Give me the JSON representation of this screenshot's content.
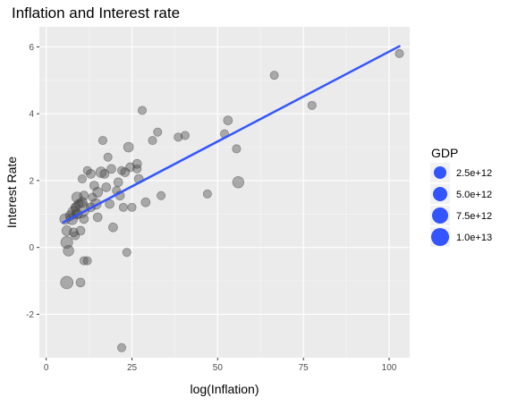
{
  "chart_data": {
    "type": "scatter",
    "title": "Inflation and Interest rate",
    "xlabel": "log(Inflation)",
    "ylabel": "Interest Rate",
    "xlim": [
      -2,
      106
    ],
    "ylim": [
      -3.3,
      6.6
    ],
    "xticks": [
      0,
      25,
      50,
      75,
      100
    ],
    "yticks": [
      -2,
      0,
      2,
      4,
      6
    ],
    "grid": true,
    "legend": {
      "title": "GDP",
      "position": "right",
      "entries": [
        "2.5e+12",
        "5.0e+12",
        "7.5e+12",
        "1.0e+13"
      ]
    },
    "point_color": "#444444",
    "point_alpha": 0.4,
    "trend_line": {
      "color": "#3355ff",
      "x": [
        5,
        103
      ],
      "y": [
        0.75,
        6.02
      ]
    },
    "points": [
      {
        "x": 5.5,
        "y": 0.85,
        "gdp": 2500000000000.0
      },
      {
        "x": 6.0,
        "y": 0.5,
        "gdp": 2000000000000.0
      },
      {
        "x": 6.0,
        "y": 0.15,
        "gdp": 3500000000000.0
      },
      {
        "x": 6.0,
        "y": -1.05,
        "gdp": 4000000000000.0
      },
      {
        "x": 6.5,
        "y": -0.1,
        "gdp": 2500000000000.0
      },
      {
        "x": 7.0,
        "y": 0.95,
        "gdp": 2000000000000.0
      },
      {
        "x": 7.5,
        "y": 0.85,
        "gdp": 3000000000000.0
      },
      {
        "x": 8.0,
        "y": 1.05,
        "gdp": 3500000000000.0
      },
      {
        "x": 8.0,
        "y": 0.45,
        "gdp": 1500000000000.0
      },
      {
        "x": 8.5,
        "y": 1.2,
        "gdp": 1500000000000.0
      },
      {
        "x": 8.5,
        "y": 0.35,
        "gdp": 1200000000000.0
      },
      {
        "x": 9.0,
        "y": 1.5,
        "gdp": 2500000000000.0
      },
      {
        "x": 9.0,
        "y": 1.0,
        "gdp": 2000000000000.0
      },
      {
        "x": 9.5,
        "y": 1.3,
        "gdp": 1500000000000.0
      },
      {
        "x": 10.0,
        "y": 1.15,
        "gdp": 10000000000000.0
      },
      {
        "x": 10.0,
        "y": 0.5,
        "gdp": 1500000000000.0
      },
      {
        "x": 10.5,
        "y": 1.35,
        "gdp": 2000000000000.0
      },
      {
        "x": 10.5,
        "y": 2.05,
        "gdp": 1200000000000.0
      },
      {
        "x": 11.0,
        "y": 1.55,
        "gdp": 1500000000000.0
      },
      {
        "x": 11.0,
        "y": 0.85,
        "gdp": 1500000000000.0
      },
      {
        "x": 10.0,
        "y": -1.05,
        "gdp": 1500000000000.0
      },
      {
        "x": 11.0,
        "y": -0.4,
        "gdp": 1200000000000.0
      },
      {
        "x": 12.0,
        "y": -0.4,
        "gdp": 1200000000000.0
      },
      {
        "x": 12.0,
        "y": 2.3,
        "gdp": 1200000000000.0
      },
      {
        "x": 13.0,
        "y": 2.2,
        "gdp": 1500000000000.0
      },
      {
        "x": 13.0,
        "y": 1.2,
        "gdp": 1500000000000.0
      },
      {
        "x": 13.5,
        "y": 1.5,
        "gdp": 1200000000000.0
      },
      {
        "x": 14.0,
        "y": 1.85,
        "gdp": 1500000000000.0
      },
      {
        "x": 14.5,
        "y": 1.3,
        "gdp": 2500000000000.0
      },
      {
        "x": 15.0,
        "y": 0.9,
        "gdp": 1500000000000.0
      },
      {
        "x": 15.0,
        "y": 1.65,
        "gdp": 2000000000000.0
      },
      {
        "x": 16.0,
        "y": 2.25,
        "gdp": 2500000000000.0
      },
      {
        "x": 16.5,
        "y": 3.2,
        "gdp": 1200000000000.0
      },
      {
        "x": 17.0,
        "y": 2.2,
        "gdp": 1500000000000.0
      },
      {
        "x": 17.5,
        "y": 1.8,
        "gdp": 1500000000000.0
      },
      {
        "x": 18.0,
        "y": 2.7,
        "gdp": 1200000000000.0
      },
      {
        "x": 18.5,
        "y": 1.3,
        "gdp": 1500000000000.0
      },
      {
        "x": 19.0,
        "y": 2.35,
        "gdp": 1500000000000.0
      },
      {
        "x": 19.5,
        "y": 0.6,
        "gdp": 1500000000000.0
      },
      {
        "x": 20.5,
        "y": 1.7,
        "gdp": 1200000000000.0
      },
      {
        "x": 21.0,
        "y": 1.95,
        "gdp": 1500000000000.0
      },
      {
        "x": 21.5,
        "y": 1.55,
        "gdp": 1500000000000.0
      },
      {
        "x": 22.0,
        "y": 2.3,
        "gdp": 1200000000000.0
      },
      {
        "x": 22.5,
        "y": 1.2,
        "gdp": 1200000000000.0
      },
      {
        "x": 23.0,
        "y": 2.25,
        "gdp": 1500000000000.0
      },
      {
        "x": 24.0,
        "y": 3.0,
        "gdp": 2000000000000.0
      },
      {
        "x": 24.5,
        "y": 2.4,
        "gdp": 1500000000000.0
      },
      {
        "x": 25.0,
        "y": 1.2,
        "gdp": 1200000000000.0
      },
      {
        "x": 22.0,
        "y": -3.0,
        "gdp": 1200000000000.0
      },
      {
        "x": 23.5,
        "y": -0.15,
        "gdp": 1200000000000.0
      },
      {
        "x": 26.5,
        "y": 2.5,
        "gdp": 1500000000000.0
      },
      {
        "x": 26.5,
        "y": 2.35,
        "gdp": 1200000000000.0
      },
      {
        "x": 27.0,
        "y": 2.05,
        "gdp": 1500000000000.0
      },
      {
        "x": 28.0,
        "y": 4.1,
        "gdp": 1200000000000.0
      },
      {
        "x": 29.0,
        "y": 1.35,
        "gdp": 1500000000000.0
      },
      {
        "x": 31.0,
        "y": 3.2,
        "gdp": 1200000000000.0
      },
      {
        "x": 32.5,
        "y": 3.45,
        "gdp": 1200000000000.0
      },
      {
        "x": 33.5,
        "y": 1.55,
        "gdp": 1200000000000.0
      },
      {
        "x": 38.5,
        "y": 3.3,
        "gdp": 1200000000000.0
      },
      {
        "x": 40.5,
        "y": 3.35,
        "gdp": 1200000000000.0
      },
      {
        "x": 47.0,
        "y": 1.6,
        "gdp": 1200000000000.0
      },
      {
        "x": 52.0,
        "y": 3.4,
        "gdp": 1200000000000.0
      },
      {
        "x": 53.0,
        "y": 3.8,
        "gdp": 1500000000000.0
      },
      {
        "x": 55.5,
        "y": 2.95,
        "gdp": 1200000000000.0
      },
      {
        "x": 56.0,
        "y": 1.95,
        "gdp": 3000000000000.0
      },
      {
        "x": 66.5,
        "y": 5.15,
        "gdp": 1200000000000.0
      },
      {
        "x": 77.5,
        "y": 4.25,
        "gdp": 1200000000000.0
      },
      {
        "x": 103.0,
        "y": 5.8,
        "gdp": 1200000000000.0
      }
    ]
  }
}
